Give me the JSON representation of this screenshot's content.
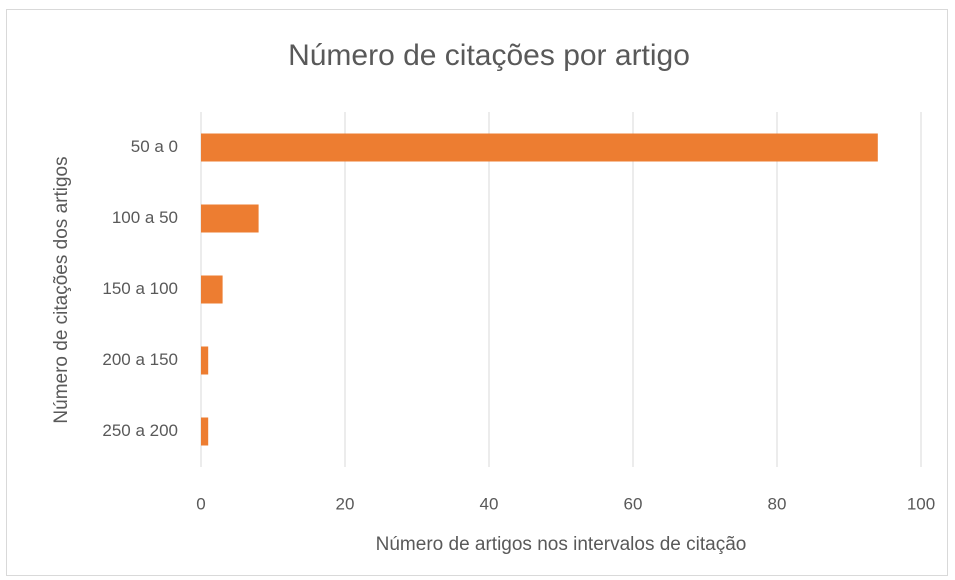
{
  "chart_data": {
    "type": "bar",
    "orientation": "horizontal",
    "title": "Número de citações por artigo",
    "x_label": "Número de artigos nos intervalos de citação",
    "y_label": "Número de citações dos artigos",
    "categories": [
      "50 a 0",
      "100 a 50",
      "150 a 100",
      "200 a 150",
      "250 a 200"
    ],
    "values": [
      94,
      8,
      3,
      1,
      1
    ],
    "color": "#ed7d31",
    "xlim": [
      0,
      100
    ],
    "xticks": [
      0,
      20,
      40,
      60,
      80,
      100
    ],
    "grid": true
  }
}
